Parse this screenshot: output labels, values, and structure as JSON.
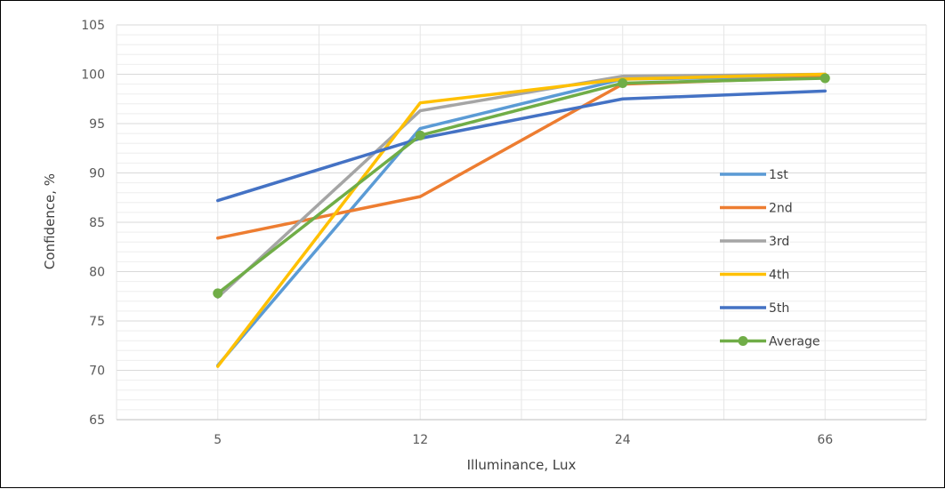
{
  "chart_data": {
    "type": "line",
    "title": "",
    "xlabel": "Illuminance, Lux",
    "ylabel": "Confidence, %",
    "categories": [
      "5",
      "12",
      "24",
      "66"
    ],
    "ylim": [
      65,
      105
    ],
    "yticks": [
      65,
      70,
      75,
      80,
      85,
      90,
      95,
      100,
      105
    ],
    "grid": true,
    "legend_position": "right",
    "series": [
      {
        "name": "1st",
        "color": "#5B9BD5",
        "values": [
          70.5,
          94.5,
          99.5,
          99.8
        ],
        "markers": false
      },
      {
        "name": "2nd",
        "color": "#ED7D31",
        "values": [
          83.4,
          87.6,
          99.0,
          99.7
        ],
        "markers": false
      },
      {
        "name": "3rd",
        "color": "#A5A5A5",
        "values": [
          77.4,
          96.3,
          99.8,
          100.0
        ],
        "markers": false
      },
      {
        "name": "4th",
        "color": "#FFC000",
        "values": [
          70.4,
          97.1,
          99.5,
          100.0
        ],
        "markers": false
      },
      {
        "name": "5th",
        "color": "#4472C4",
        "values": [
          87.2,
          93.5,
          97.5,
          98.3
        ],
        "markers": false
      },
      {
        "name": "Average",
        "color": "#70AD47",
        "values": [
          77.8,
          93.8,
          99.1,
          99.6
        ],
        "markers": true
      }
    ]
  }
}
